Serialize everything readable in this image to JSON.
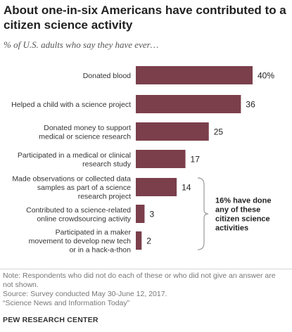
{
  "header": {
    "title": "About one-in-six Americans have contributed to a citizen science activity",
    "subtitle": "% of U.S. adults who say they have ever…"
  },
  "chart_data": {
    "type": "bar",
    "orientation": "horizontal",
    "categories": [
      [
        "Donated blood"
      ],
      [
        "Helped a child with a science project"
      ],
      [
        "Donated money to support",
        "medical or science research"
      ],
      [
        "Participated in a medical or clinical",
        "research study"
      ],
      [
        "Made observations or collected data",
        "samples as part of a science",
        "research project"
      ],
      [
        "Contributed to a science-related",
        "online crowdsourcing activity"
      ],
      [
        "Participated in a maker",
        "movement to develop new tech",
        "or in a hack-a-thon"
      ]
    ],
    "values": [
      40,
      36,
      25,
      17,
      14,
      3,
      2
    ],
    "value_labels": [
      "40%",
      "36",
      "25",
      "17",
      "14",
      "3",
      "2"
    ],
    "xlim": [
      0,
      40
    ],
    "grid": false,
    "bar_color": "#7b3f4b",
    "annotation": {
      "text": [
        "16% have done",
        "any of these",
        "citizen science",
        "activities"
      ],
      "spans_categories": [
        4,
        6
      ]
    }
  },
  "footer": {
    "note": "Note: Respondents who did not do each of these or who did not give an answer are not shown.",
    "source": "Source: Survey conducted May 30-June 12, 2017.",
    "report": "“Science News and Information Today”",
    "brand": "PEW RESEARCH CENTER"
  }
}
